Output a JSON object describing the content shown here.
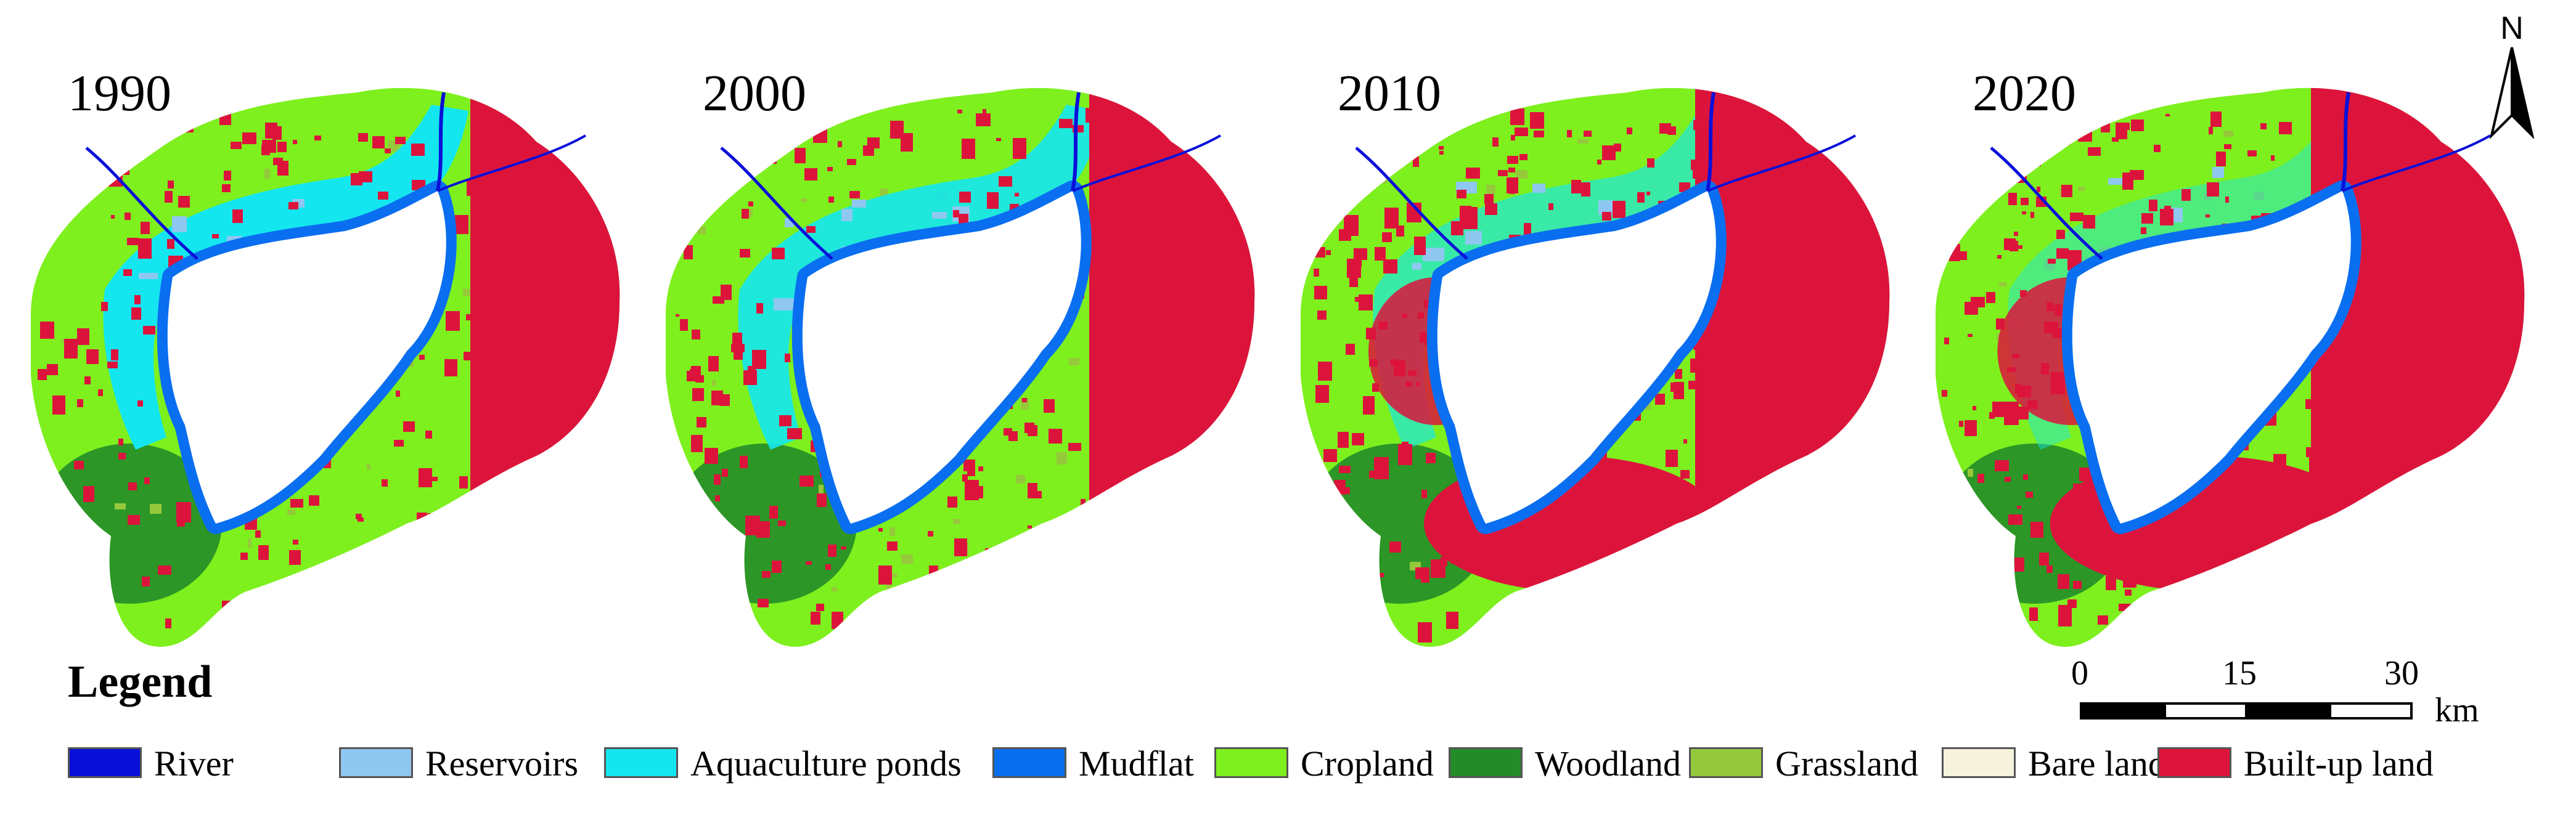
{
  "years": [
    "1990",
    "2000",
    "2010",
    "2020"
  ],
  "legend": {
    "title": "Legend",
    "items": [
      {
        "label": "River",
        "color": "#0a10d8"
      },
      {
        "label": "Reservoirs",
        "color": "#8ec7f0"
      },
      {
        "label": "Aquaculture ponds",
        "color": "#14e6f0"
      },
      {
        "label": "Mudflat",
        "color": "#0a6ef0"
      },
      {
        "label": "Cropland",
        "color": "#7ef01e"
      },
      {
        "label": "Woodland",
        "color": "#238c28"
      },
      {
        "label": "Grassland",
        "color": "#96c83c"
      },
      {
        "label": "Bare land",
        "color": "#f5f3dc"
      },
      {
        "label": "Built-up land",
        "color": "#dc143c"
      }
    ]
  },
  "scale_bar": {
    "ticks": [
      "0",
      "15",
      "30"
    ],
    "unit": "km"
  },
  "north_arrow": {
    "label": "N",
    "icon": "north-arrow-icon"
  }
}
